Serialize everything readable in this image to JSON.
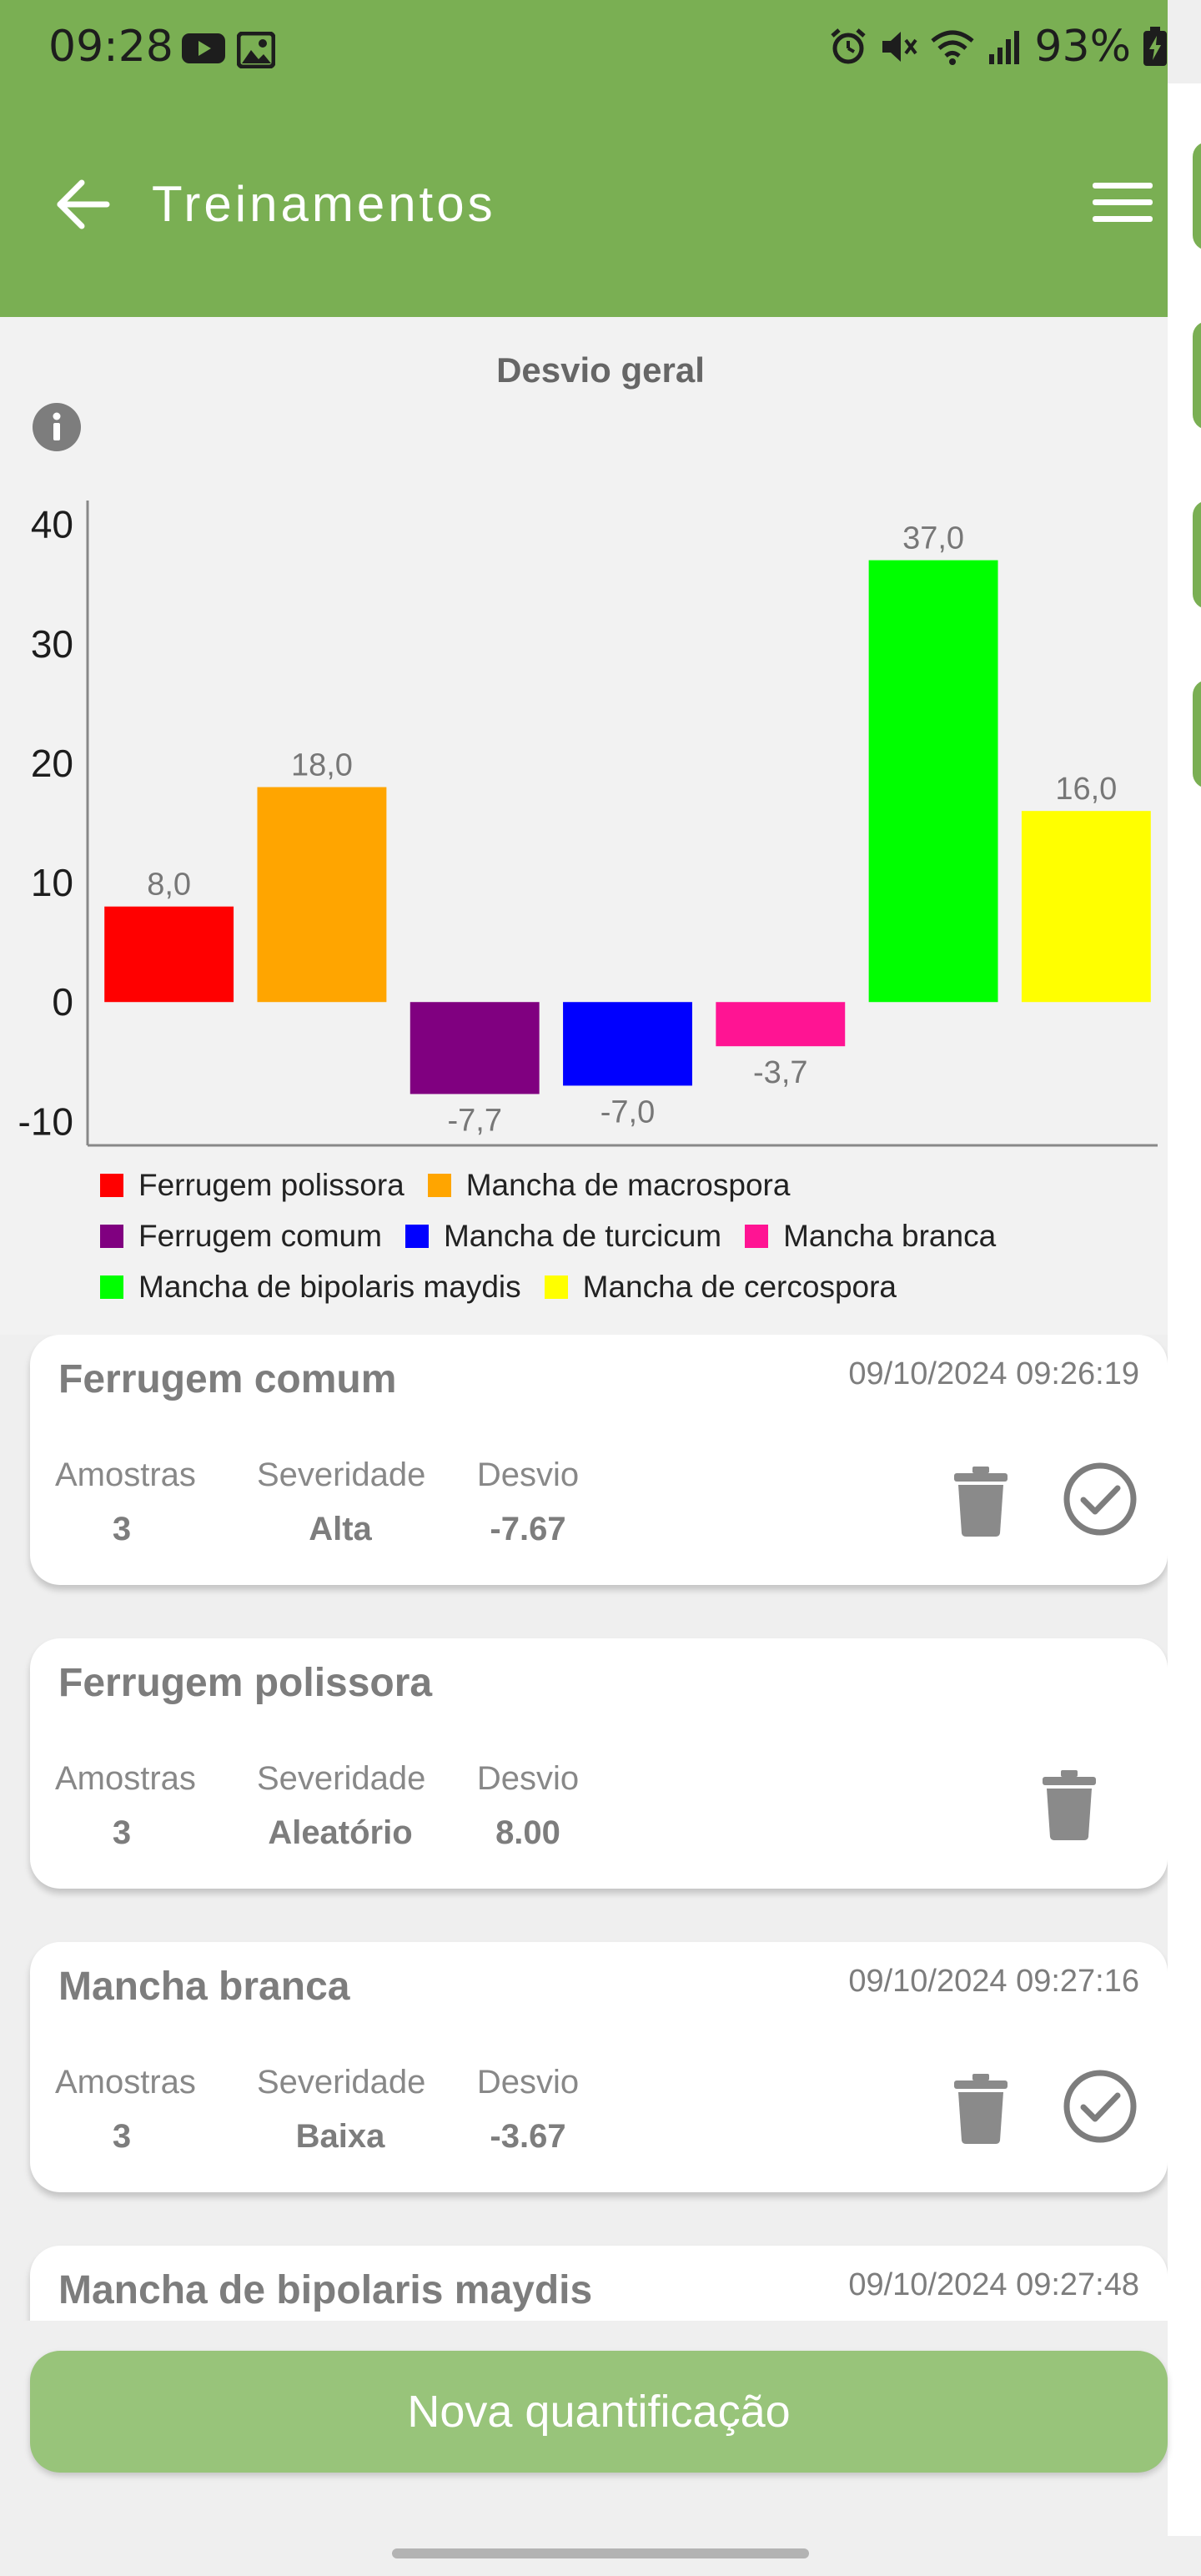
{
  "status_bar": {
    "time": "09:28",
    "battery": "93%",
    "icons": [
      "youtube-icon",
      "gallery-icon",
      "alarm-icon",
      "mute-icon",
      "wifi-icon",
      "signal-icon",
      "battery-charging-icon"
    ]
  },
  "app_bar": {
    "title": "Treinamentos",
    "back_icon": "arrow-left-icon",
    "menu_icon": "hamburger-menu-icon",
    "color": "#7aaf53"
  },
  "chart_data": {
    "type": "bar",
    "title": "Desvio geral",
    "categories": [
      "Ferrugem polissora",
      "Mancha de macrospora",
      "Ferrugem comum",
      "Mancha de turcicum",
      "Mancha branca",
      "Mancha de bipolaris maydis",
      "Mancha de cercospora"
    ],
    "values": [
      8.0,
      18.0,
      -7.7,
      -7.0,
      -3.7,
      37.0,
      16.0
    ],
    "value_labels": [
      "8,0",
      "18,0",
      "-7,7",
      "-7,0",
      "-3,7",
      "37,0",
      "16,0"
    ],
    "colors": [
      "#ff0000",
      "#ffa500",
      "#800080",
      "#0000ff",
      "#ff1493",
      "#00ff00",
      "#ffff00"
    ],
    "ylim": [
      -12,
      42
    ],
    "yticks": [
      40,
      30,
      20,
      10,
      0,
      -10
    ],
    "ytick_labels": [
      "40",
      "30",
      "20",
      "10",
      "0",
      "-10"
    ],
    "xlabel": "",
    "ylabel": "",
    "legend_position": "bottom",
    "grid": false,
    "info_icon": "info-icon"
  },
  "cards": [
    {
      "title": "Ferrugem comum",
      "date": "09/10/2024 09:26:19",
      "stats": [
        {
          "label": "Amostras",
          "value": "3"
        },
        {
          "label": "Severidade",
          "value": "Alta"
        },
        {
          "label": "Desvio",
          "value": "-7.67"
        }
      ],
      "completed": true
    },
    {
      "title": "Ferrugem polissora",
      "date": "",
      "stats": [
        {
          "label": "Amostras",
          "value": "3"
        },
        {
          "label": "Severidade",
          "value": "Aleatório"
        },
        {
          "label": "Desvio",
          "value": "8.00"
        }
      ],
      "completed": false
    },
    {
      "title": "Mancha branca",
      "date": "09/10/2024 09:27:16",
      "stats": [
        {
          "label": "Amostras",
          "value": "3"
        },
        {
          "label": "Severidade",
          "value": "Baixa"
        },
        {
          "label": "Desvio",
          "value": "-3.67"
        }
      ],
      "completed": true
    },
    {
      "title": "Mancha de bipolaris maydis",
      "date": "09/10/2024 09:27:48",
      "stats": [],
      "completed": true
    }
  ],
  "fab": {
    "label": "Nova quantificação",
    "color": "#98c47a"
  }
}
